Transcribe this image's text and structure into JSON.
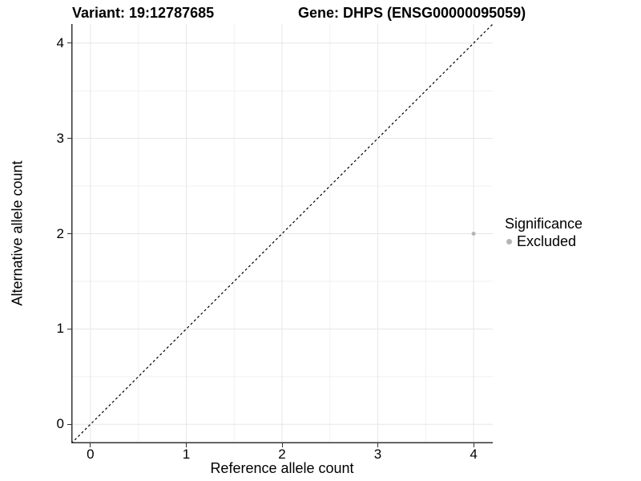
{
  "figure": {
    "background": "#ffffff",
    "text_color": "#000000"
  },
  "chart_data": {
    "type": "scatter",
    "title_left": "Variant: 19:12787685",
    "title_right": "Gene: DHPS (ENSG00000095059)",
    "xlabel": "Reference allele count",
    "ylabel": "Alternative allele count",
    "xlim": [
      -0.2,
      4.2
    ],
    "ylim": [
      -0.2,
      4.2
    ],
    "xticks": [
      0,
      1,
      2,
      3,
      4
    ],
    "yticks": [
      0,
      1,
      2,
      3,
      4
    ],
    "xminor": [
      0.5,
      1.5,
      2.5,
      3.5
    ],
    "yminor": [
      0.5,
      1.5,
      2.5,
      3.5
    ],
    "grid": {
      "on": true,
      "major_color": "#e6e6e6",
      "minor_color": "#f1f1f1"
    },
    "axis_color": "#333333",
    "identity_line": {
      "style": "dashed",
      "color": "#000000",
      "x1": -0.2,
      "y1": -0.2,
      "x2": 4.2,
      "y2": 4.2
    },
    "series": [
      {
        "name": "Excluded",
        "color": "#b5b5b5",
        "points": [
          [
            4,
            2
          ]
        ]
      }
    ],
    "legend": {
      "title": "Significance",
      "position": "right",
      "items": [
        {
          "label": "Excluded",
          "color": "#b5b5b5"
        }
      ]
    }
  }
}
